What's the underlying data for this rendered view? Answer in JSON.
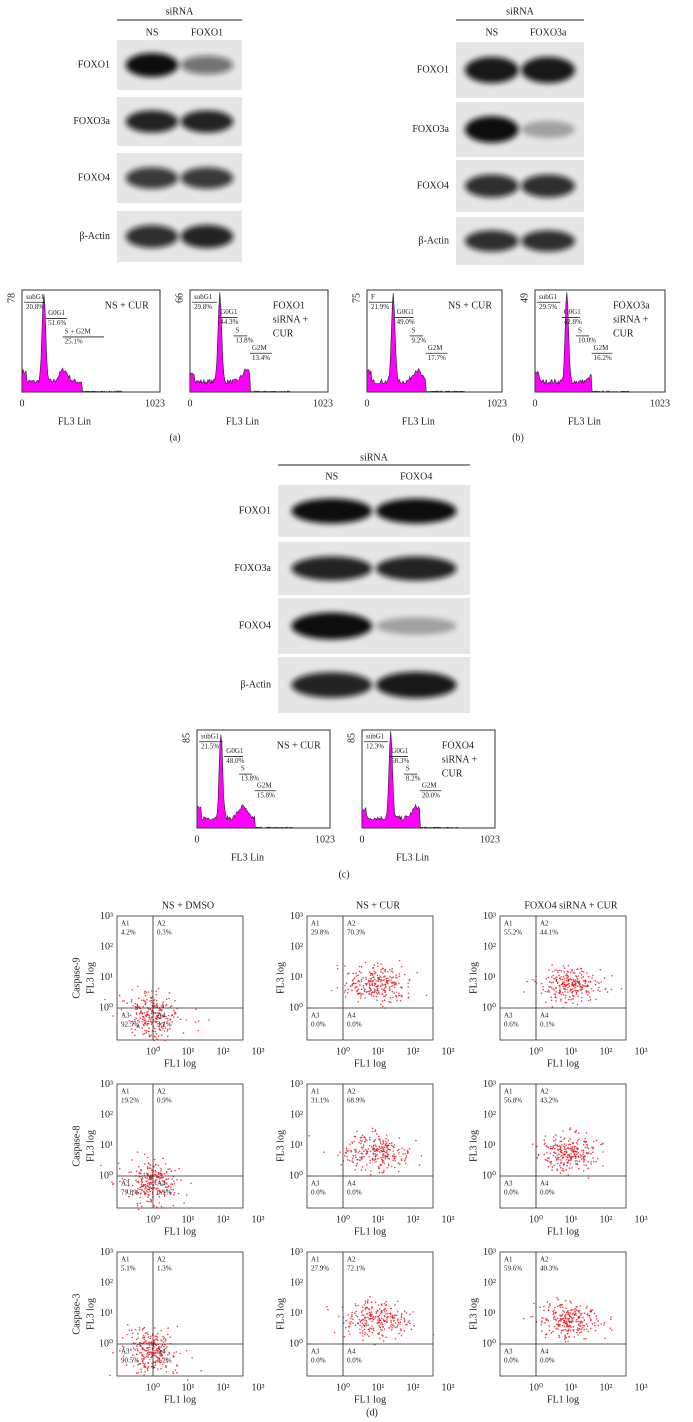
{
  "panels": [
    {
      "caption": "(a)",
      "blot": {
        "header": "siRNA",
        "lanes": [
          "NS",
          "FOXO1"
        ],
        "rows": [
          "FOXO1",
          "FOXO3a",
          "FOXO4",
          "β-Actin"
        ]
      },
      "histograms": [
        {
          "ymax": "78",
          "legend": [
            "NS + CUR"
          ],
          "xticks": [
            "0",
            "1023"
          ],
          "xlabel": "FL3 Lin",
          "gates": [
            {
              "name": "subG1",
              "pct": "20.8%"
            },
            {
              "name": "G0G1",
              "pct": "51.6%"
            },
            {
              "name": "S + G2M",
              "pct": "25.1%"
            }
          ]
        },
        {
          "ymax": "66",
          "legend": [
            "FOXO1",
            "siRNA +",
            "CUR"
          ],
          "xticks": [
            "0",
            "1023"
          ],
          "xlabel": "FL3 Lin",
          "gates": [
            {
              "name": "subG1",
              "pct": "29.8%"
            },
            {
              "name": "G0G1",
              "pct": "44.3%"
            },
            {
              "name": "S",
              "pct": "13.8%"
            },
            {
              "name": "G2M",
              "pct": "13.4%"
            }
          ]
        }
      ]
    },
    {
      "caption": "(b)",
      "blot": {
        "header": "siRNA",
        "lanes": [
          "NS",
          "FOXO3a"
        ],
        "rows": [
          "FOXO1",
          "FOXO3a",
          "FOXO4",
          "β-Actin"
        ]
      },
      "histograms": [
        {
          "ymax": "75",
          "legend": [
            "NS + CUR"
          ],
          "xticks": [
            "0",
            "1023"
          ],
          "xlabel": "FL3 Lin",
          "gates": [
            {
              "name": "F",
              "pct": "21.9%"
            },
            {
              "name": "G0G1",
              "pct": "49.0%"
            },
            {
              "name": "S",
              "pct": "9.2%"
            },
            {
              "name": "G2M",
              "pct": "17.7%"
            }
          ]
        },
        {
          "ymax": "49",
          "legend": [
            "FOXO3a",
            "siRNA +",
            "CUR"
          ],
          "xticks": [
            "0",
            "1023"
          ],
          "xlabel": "FL3 Lin",
          "gates": [
            {
              "name": "subG1",
              "pct": "29.5%"
            },
            {
              "name": "G0G1",
              "pct": "42.8%"
            },
            {
              "name": "S",
              "pct": "10.0%"
            },
            {
              "name": "G2M",
              "pct": "16.2%"
            }
          ]
        }
      ]
    },
    {
      "caption": "(c)",
      "blot": {
        "header": "siRNA",
        "lanes": [
          "NS",
          "FOXO4"
        ],
        "rows": [
          "FOXO1",
          "FOXO3a",
          "FOXO4",
          "β-Actin"
        ]
      },
      "histograms": [
        {
          "ymax": "85",
          "legend": [
            "NS + CUR"
          ],
          "xticks": [
            "0",
            "1023"
          ],
          "xlabel": "FL3 Lin",
          "gates": [
            {
              "name": "subG1",
              "pct": "21.5%"
            },
            {
              "name": "G0G1",
              "pct": "48.0%"
            },
            {
              "name": "S",
              "pct": "13.8%"
            },
            {
              "name": "G2M",
              "pct": "15.8%"
            }
          ]
        },
        {
          "ymax": "85",
          "legend": [
            "FOXO4",
            "siRNA +",
            "CUR"
          ],
          "xticks": [
            "0",
            "1023"
          ],
          "xlabel": "FL3 Lin",
          "gates": [
            {
              "name": "subG1",
              "pct": "12.3%"
            },
            {
              "name": "G0G1",
              "pct": "58.3%"
            },
            {
              "name": "S",
              "pct": "8.2%"
            },
            {
              "name": "G2M",
              "pct": "20.0%"
            }
          ]
        }
      ]
    }
  ],
  "flow": {
    "caption": "(d)",
    "columns": [
      "NS + DMSO",
      "NS + CUR",
      "FOXO4 siRNA + CUR"
    ],
    "rows": [
      "Caspase-9",
      "Caspase-8",
      "Caspase-3"
    ],
    "x_label": "FL1 log",
    "y_label": "FL3 log",
    "ticks": [
      "10⁰",
      "10¹",
      "10²",
      "10³"
    ],
    "quadrants": [
      "A1",
      "A2",
      "A3",
      "A4"
    ],
    "values": [
      [
        [
          "4.2%",
          "0.3%",
          "92.5%",
          "3.1%"
        ],
        [
          "29.8%",
          "70.3%",
          "0.0%",
          "0.0%"
        ],
        [
          "55.2%",
          "44.1%",
          "0.6%",
          "0.1%"
        ]
      ],
      [
        [
          "19.2%",
          "0.9%",
          "79.8%",
          "0.1%"
        ],
        [
          "31.1%",
          "68.9%",
          "0.0%",
          "0.0%"
        ],
        [
          "56.8%",
          "43.2%",
          "0.0%",
          "0.0%"
        ]
      ],
      [
        [
          "5.1%",
          "1.3%",
          "90.5%",
          "3.2%"
        ],
        [
          "27.9%",
          "72.1%",
          "0.0%",
          "0.0%"
        ],
        [
          "59.6%",
          "40.3%",
          "0.0%",
          "0.0%"
        ]
      ]
    ]
  }
}
